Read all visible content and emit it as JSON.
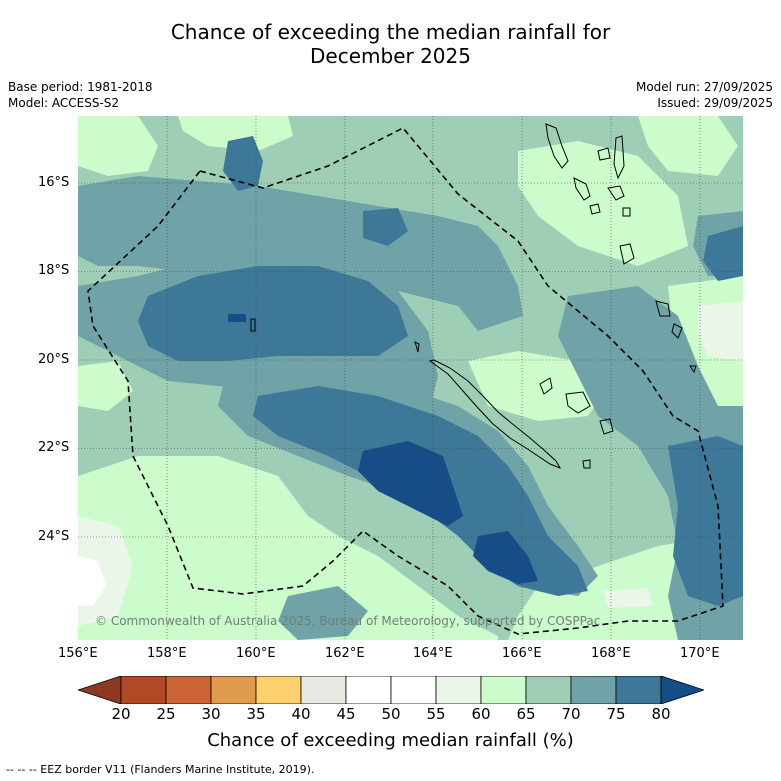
{
  "title_line1": "Chance of exceeding the median rainfall for",
  "title_line2": "December 2025",
  "meta": {
    "base_period": "Base period: 1981-2018",
    "model": "Model: ACCESS-S2",
    "model_run": "Model run: 27/09/2025",
    "issued": "Issued: 29/09/2025"
  },
  "map": {
    "lat_labels": [
      "16°S",
      "18°S",
      "20°S",
      "22°S",
      "24°S"
    ],
    "lon_labels": [
      "156°E",
      "158°E",
      "160°E",
      "162°E",
      "164°E",
      "166°E",
      "168°E",
      "170°E"
    ],
    "copyright": "© Commonwealth of Australia 2025, Bureau of Meteorology, supported by COSPPac"
  },
  "colorbar": {
    "ticks": [
      "20",
      "25",
      "30",
      "35",
      "40",
      "45",
      "50",
      "55",
      "60",
      "65",
      "70",
      "75",
      "80"
    ],
    "colors": [
      "#b04a26",
      "#cd6433",
      "#e29a4e",
      "#fdd06e",
      "#e9e9e4",
      "#ffffff",
      "#ffffff",
      "#eaf6e8",
      "#ccfccc",
      "#9ecfb6",
      "#6fa3a8",
      "#3e7898"
    ],
    "under_color": "#8b3a1f",
    "over_color": "#164d86",
    "title": "Chance of exceeding median rainfall (%)"
  },
  "footnote": "--  --  -- EEZ border V11 (Flanders Marine Institute, 2019)."
}
